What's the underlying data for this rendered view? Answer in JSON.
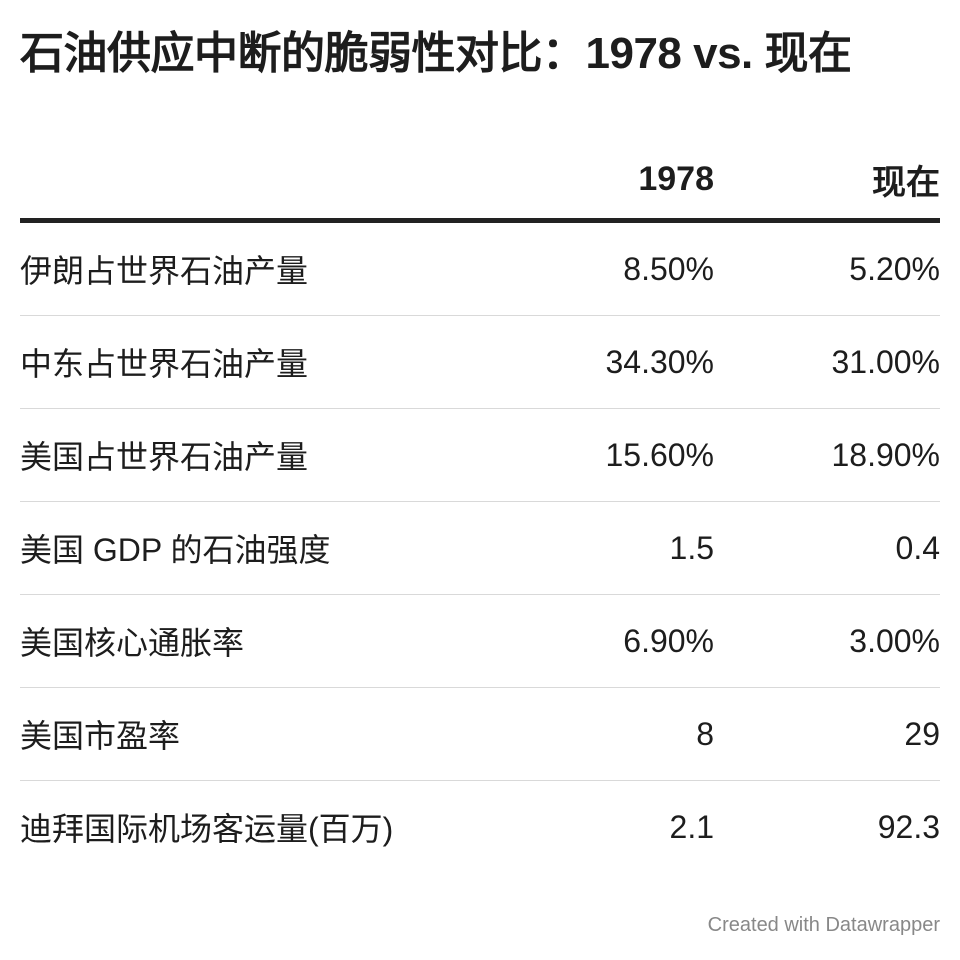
{
  "title": "石油供应中断的脆弱性对比：1978 vs. 现在",
  "table": {
    "headers": [
      "",
      "1978",
      "现在"
    ],
    "rows": [
      {
        "label": "伊朗占世界石油产量",
        "y1978": "8.50%",
        "now": "5.20%"
      },
      {
        "label": "中东占世界石油产量",
        "y1978": "34.30%",
        "now": "31.00%"
      },
      {
        "label": "美国占世界石油产量",
        "y1978": "15.60%",
        "now": "18.90%"
      },
      {
        "label": "美国 GDP 的石油强度",
        "y1978": "1.5",
        "now": "0.4"
      },
      {
        "label": "美国核心通胀率",
        "y1978": "6.90%",
        "now": "3.00%"
      },
      {
        "label": "美国市盈率",
        "y1978": "8",
        "now": "29"
      },
      {
        "label": "迪拜国际机场客运量(百万)",
        "y1978": "2.1",
        "now": "92.3"
      }
    ]
  },
  "footer": "Created with Datawrapper"
}
